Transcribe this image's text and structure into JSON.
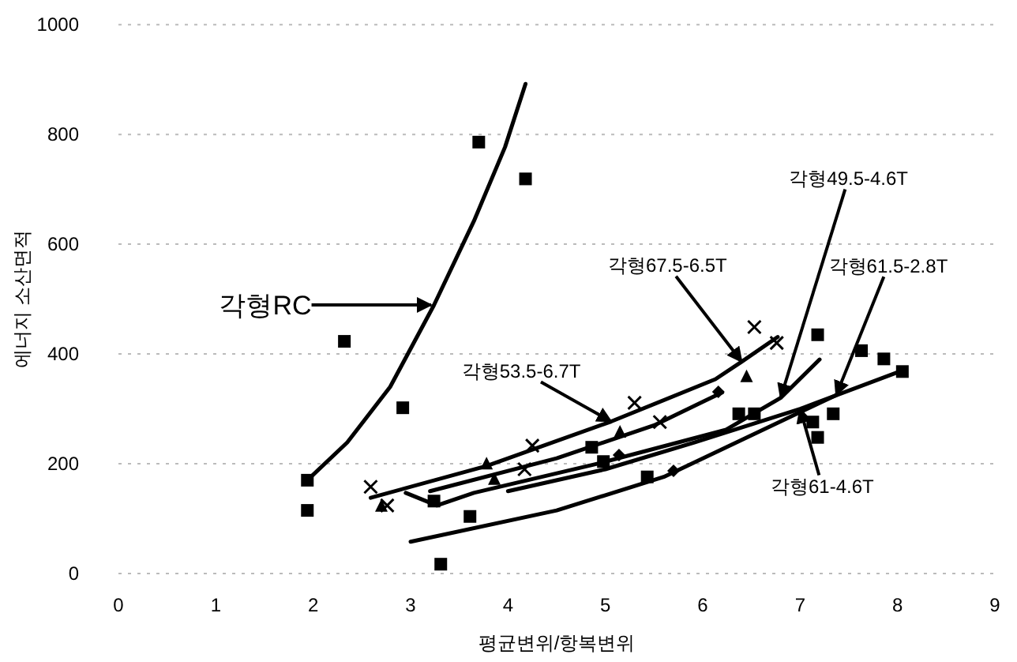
{
  "chart_data": {
    "type": "scatter",
    "xlabel": "평균변위/항복변위",
    "ylabel": "에너지 소산면적",
    "xlim": [
      0,
      9
    ],
    "ylim": [
      0,
      1000
    ],
    "xticks": [
      0,
      1,
      2,
      3,
      4,
      5,
      6,
      7,
      8,
      9
    ],
    "yticks": [
      0,
      200,
      400,
      600,
      800,
      1000
    ],
    "grid": "y",
    "series": [
      {
        "marker": "square",
        "color": "#000000",
        "x": [
          1.94,
          1.94,
          2.32,
          2.92,
          3.7,
          4.18,
          3.31
        ],
        "values": [
          170,
          115,
          423,
          302,
          786,
          719,
          17
        ]
      },
      {
        "marker": "cross",
        "color": "#000000",
        "x": [
          2.59,
          2.76,
          4.25,
          4.17,
          5.3,
          5.56,
          6.53,
          6.76
        ],
        "values": [
          158,
          124,
          233,
          190,
          311,
          276,
          449,
          420
        ]
      },
      {
        "marker": "triangle",
        "color": "#000000",
        "x": [
          2.7,
          3.78,
          3.86,
          5.15,
          6.45
        ],
        "values": [
          124,
          201,
          173,
          259,
          360
        ]
      },
      {
        "marker": "diamond",
        "color": "#000000",
        "x": [
          5.14,
          5.7,
          6.16
        ],
        "values": [
          216,
          187,
          331
        ]
      },
      {
        "marker": "square",
        "color": "#000000",
        "x": [
          3.24,
          3.61,
          4.86,
          4.98,
          5.43,
          6.37,
          6.53,
          7.18,
          7.13,
          7.18,
          7.34,
          7.86,
          8.05,
          7.63
        ],
        "values": [
          132,
          104,
          230,
          204,
          176,
          291,
          291,
          435,
          276,
          248,
          291,
          391,
          368,
          406
        ]
      },
      {
        "type": "line",
        "marker": "none",
        "color": "#000000",
        "x": [
          1.94,
          2.35,
          2.79,
          3.24,
          3.65,
          3.97,
          4.18
        ],
        "values": [
          170,
          239,
          340,
          489,
          642,
          777,
          892
        ]
      },
      {
        "type": "line",
        "marker": "none",
        "color": "#000000",
        "x": [
          2.59,
          3.78,
          5.06,
          6.13,
          6.4,
          6.77
        ],
        "values": [
          138,
          196,
          277,
          354,
          386,
          431
        ]
      },
      {
        "type": "line",
        "marker": "none",
        "color": "#000000",
        "x": [
          3.2,
          4.5,
          5.5,
          6.2
        ],
        "values": [
          150,
          210,
          270,
          330
        ]
      },
      {
        "type": "line",
        "marker": "none",
        "color": "#000000",
        "x": [
          2.95,
          3.27,
          3.65,
          4.94,
          6.24,
          6.8,
          7.2
        ],
        "values": [
          147,
          124,
          147,
          201,
          262,
          320,
          390
        ]
      },
      {
        "type": "line",
        "marker": "none",
        "color": "#000000",
        "x": [
          3.0,
          4.5,
          5.6,
          6.24,
          7.37
        ],
        "values": [
          58,
          115,
          176,
          230,
          325
        ]
      },
      {
        "type": "line",
        "marker": "none",
        "color": "#000000",
        "x": [
          4.0,
          5.0,
          5.92,
          7.0,
          8.02
        ],
        "values": [
          150,
          190,
          239,
          300,
          368
        ]
      }
    ],
    "annotations": [
      "각형RC",
      {
        "text": "각형53.5-6.7T",
        "x": 5.06,
        "y": 277
      },
      {
        "text": "각형67.5-6.5T",
        "x": 6.4,
        "y": 386
      },
      {
        "text": "각형49.5-4.6T",
        "x": 6.8,
        "y": 320
      },
      {
        "text": "각형61.5-2.8T",
        "x": 7.37,
        "y": 325
      },
      {
        "text": "각형61-4.6T",
        "x": 7.0,
        "y": 300
      }
    ]
  }
}
